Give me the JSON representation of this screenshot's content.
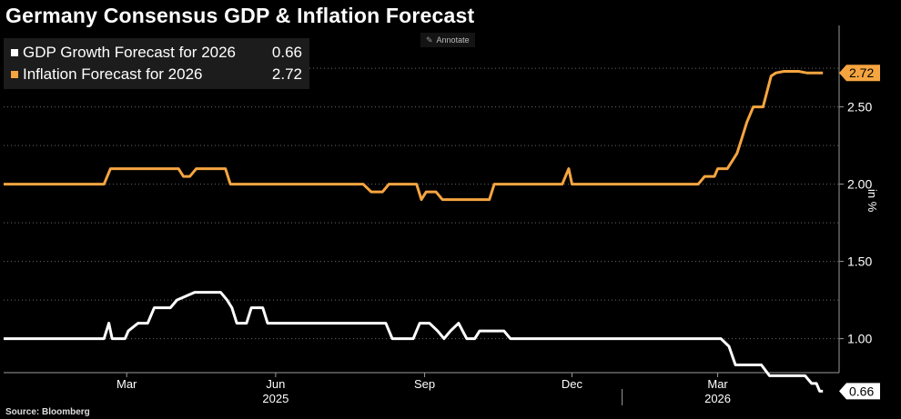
{
  "title": "Germany Consensus GDP & Inflation Forecast",
  "source": "Source: Bloomberg",
  "annotate_label": "Annotate",
  "unit_label": "in %",
  "chart_data": {
    "type": "line",
    "title": "Germany Consensus GDP & Inflation Forecast",
    "xlabel": "",
    "ylabel": "in %",
    "x_range": [
      "2024-12-15",
      "2026-05-15"
    ],
    "ylim": [
      0.78,
      2.98
    ],
    "y_ticks": [
      1.0,
      1.5,
      2.0,
      2.5
    ],
    "y_tick_labels": [
      "1.00",
      "1.50",
      "2.00",
      "2.50"
    ],
    "x_ticks": [
      {
        "date": "2025-03-01",
        "label": "Mar"
      },
      {
        "date": "2025-06-01",
        "label": "Jun"
      },
      {
        "date": "2025-09-01",
        "label": "Sep"
      },
      {
        "date": "2025-12-01",
        "label": "Dec"
      },
      {
        "date": "2026-03-01",
        "label": "Mar"
      }
    ],
    "year_labels": [
      {
        "date": "2025-06-01",
        "label": "2025"
      },
      {
        "date": "2026-03-01",
        "label": "2026"
      }
    ],
    "year_separator": "2026-01-01",
    "grid": "horizontal-dotted",
    "legend_position": "top-left",
    "series": [
      {
        "name": "GDP Growth Forecast for 2026",
        "legend_value": "0.66",
        "color": "#ffffff",
        "points": [
          [
            "2024-12-15",
            1.0
          ],
          [
            "2025-02-15",
            1.0
          ],
          [
            "2025-02-18",
            1.1
          ],
          [
            "2025-02-20",
            1.0
          ],
          [
            "2025-02-28",
            1.0
          ],
          [
            "2025-03-02",
            1.05
          ],
          [
            "2025-03-08",
            1.1
          ],
          [
            "2025-03-14",
            1.1
          ],
          [
            "2025-03-18",
            1.2
          ],
          [
            "2025-03-28",
            1.2
          ],
          [
            "2025-04-01",
            1.25
          ],
          [
            "2025-04-12",
            1.3
          ],
          [
            "2025-04-28",
            1.3
          ],
          [
            "2025-05-02",
            1.25
          ],
          [
            "2025-05-05",
            1.2
          ],
          [
            "2025-05-08",
            1.1
          ],
          [
            "2025-05-14",
            1.1
          ],
          [
            "2025-05-17",
            1.2
          ],
          [
            "2025-05-24",
            1.2
          ],
          [
            "2025-05-27",
            1.1
          ],
          [
            "2025-08-08",
            1.1
          ],
          [
            "2025-08-12",
            1.0
          ],
          [
            "2025-08-25",
            1.0
          ],
          [
            "2025-08-29",
            1.1
          ],
          [
            "2025-09-04",
            1.1
          ],
          [
            "2025-09-09",
            1.05
          ],
          [
            "2025-09-13",
            1.0
          ],
          [
            "2025-09-17",
            1.05
          ],
          [
            "2025-09-22",
            1.1
          ],
          [
            "2025-09-27",
            1.0
          ],
          [
            "2025-10-02",
            1.0
          ],
          [
            "2025-10-05",
            1.05
          ],
          [
            "2025-10-20",
            1.05
          ],
          [
            "2025-10-24",
            1.0
          ],
          [
            "2026-03-03",
            1.0
          ],
          [
            "2026-03-08",
            0.95
          ],
          [
            "2026-03-12",
            0.83
          ],
          [
            "2026-03-28",
            0.83
          ],
          [
            "2026-04-02",
            0.76
          ],
          [
            "2026-04-24",
            0.76
          ],
          [
            "2026-04-28",
            0.71
          ],
          [
            "2026-05-01",
            0.71
          ],
          [
            "2026-05-03",
            0.66
          ],
          [
            "2026-05-05",
            0.66
          ]
        ]
      },
      {
        "name": "Inflation Forecast for 2026",
        "legend_value": "2.72",
        "color": "#f5a540",
        "points": [
          [
            "2024-12-15",
            2.0
          ],
          [
            "2025-02-15",
            2.0
          ],
          [
            "2025-02-19",
            2.1
          ],
          [
            "2025-04-02",
            2.1
          ],
          [
            "2025-04-05",
            2.05
          ],
          [
            "2025-04-09",
            2.05
          ],
          [
            "2025-04-13",
            2.1
          ],
          [
            "2025-05-01",
            2.1
          ],
          [
            "2025-05-04",
            2.0
          ],
          [
            "2025-07-25",
            2.0
          ],
          [
            "2025-07-30",
            1.95
          ],
          [
            "2025-08-06",
            1.95
          ],
          [
            "2025-08-10",
            2.0
          ],
          [
            "2025-08-27",
            2.0
          ],
          [
            "2025-08-30",
            1.9
          ],
          [
            "2025-09-02",
            1.95
          ],
          [
            "2025-09-08",
            1.95
          ],
          [
            "2025-09-12",
            1.9
          ],
          [
            "2025-10-11",
            1.9
          ],
          [
            "2025-10-14",
            2.0
          ],
          [
            "2025-11-25",
            2.0
          ],
          [
            "2025-11-29",
            2.1
          ],
          [
            "2025-12-01",
            2.0
          ],
          [
            "2026-02-17",
            2.0
          ],
          [
            "2026-02-21",
            2.05
          ],
          [
            "2026-02-27",
            2.05
          ],
          [
            "2026-03-01",
            2.1
          ],
          [
            "2026-03-07",
            2.1
          ],
          [
            "2026-03-10",
            2.15
          ],
          [
            "2026-03-13",
            2.2
          ],
          [
            "2026-03-16",
            2.3
          ],
          [
            "2026-03-19",
            2.4
          ],
          [
            "2026-03-23",
            2.5
          ],
          [
            "2026-03-29",
            2.5
          ],
          [
            "2026-04-03",
            2.7
          ],
          [
            "2026-04-06",
            2.72
          ],
          [
            "2026-04-11",
            2.73
          ],
          [
            "2026-04-20",
            2.73
          ],
          [
            "2026-04-25",
            2.72
          ],
          [
            "2026-05-05",
            2.72
          ]
        ]
      }
    ]
  }
}
